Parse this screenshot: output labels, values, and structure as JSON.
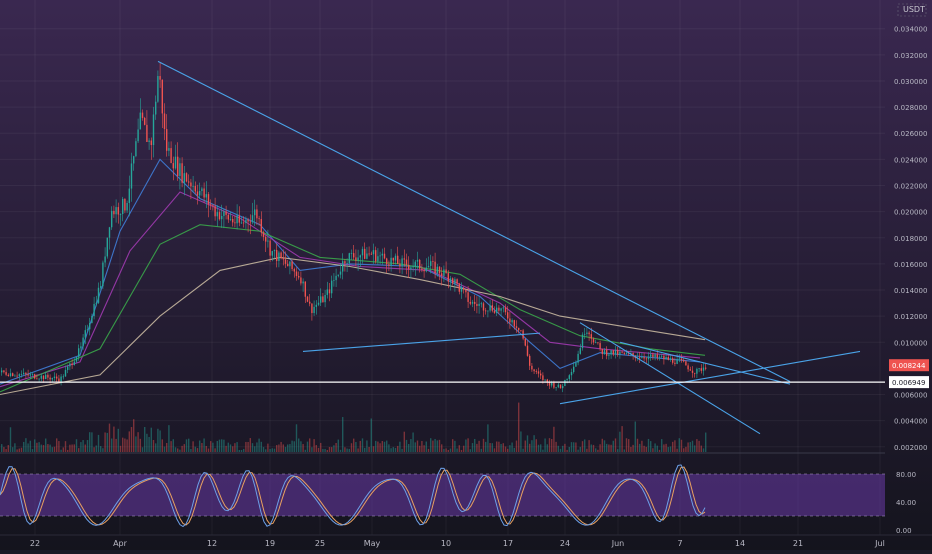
{
  "currency_label": "USDT",
  "colors": {
    "background_top": "#3a2850",
    "background_bottom": "#14141d",
    "candle_up": "#26a69a",
    "candle_down": "#ef5350",
    "ma_fast": "#3f7dd8",
    "ma_mid": "#a03ab0",
    "ma_slow": "#3aa64a",
    "ma_long": "#c8b8a0",
    "trendline": "#4aa3e8",
    "hline": "#ffffff",
    "stoch_k": "#6da0e8",
    "stoch_d": "#e8a060",
    "stoch_band": "#6a3aa8",
    "price_label_red": "#ef5350"
  },
  "chart_data": {
    "type": "candlestick",
    "y_axis": {
      "ticks": [
        "0.034000",
        "0.032000",
        "0.030000",
        "0.028000",
        "0.026000",
        "0.024000",
        "0.022000",
        "0.020000",
        "0.018000",
        "0.016000",
        "0.014000",
        "0.012000",
        "0.010000",
        "0.006000",
        "0.004000",
        "0.002000"
      ],
      "range": [
        0.0016,
        0.0362
      ]
    },
    "x_axis": {
      "ticks": [
        "22",
        "Apr",
        "12",
        "19",
        "25",
        "May",
        "10",
        "17",
        "24",
        "Jun",
        "7",
        "14",
        "21",
        "Jul"
      ]
    },
    "price_labels": {
      "last": "0.008244",
      "level": "0.006949"
    },
    "price_path": [
      [
        0,
        0.0077
      ],
      [
        60,
        0.0072
      ],
      [
        80,
        0.0095
      ],
      [
        100,
        0.0145
      ],
      [
        110,
        0.02
      ],
      [
        125,
        0.0205
      ],
      [
        140,
        0.027
      ],
      [
        150,
        0.025
      ],
      [
        158,
        0.031
      ],
      [
        165,
        0.025
      ],
      [
        180,
        0.023
      ],
      [
        200,
        0.0215
      ],
      [
        215,
        0.02
      ],
      [
        240,
        0.019
      ],
      [
        255,
        0.02
      ],
      [
        270,
        0.017
      ],
      [
        285,
        0.016
      ],
      [
        300,
        0.015
      ],
      [
        310,
        0.0125
      ],
      [
        325,
        0.0135
      ],
      [
        345,
        0.0165
      ],
      [
        370,
        0.0168
      ],
      [
        400,
        0.016
      ],
      [
        430,
        0.0158
      ],
      [
        450,
        0.015
      ],
      [
        470,
        0.013
      ],
      [
        500,
        0.0125
      ],
      [
        520,
        0.011
      ],
      [
        530,
        0.008
      ],
      [
        545,
        0.007
      ],
      [
        560,
        0.0065
      ],
      [
        575,
        0.0085
      ],
      [
        585,
        0.0112
      ],
      [
        600,
        0.0093
      ],
      [
        630,
        0.009
      ],
      [
        660,
        0.0088
      ],
      [
        680,
        0.0085
      ],
      [
        695,
        0.0077
      ],
      [
        705,
        0.0082
      ]
    ],
    "moving_averages": [
      {
        "points": [
          [
            0,
            0.0068
          ],
          [
            80,
            0.009
          ],
          [
            120,
            0.0185
          ],
          [
            160,
            0.024
          ],
          [
            200,
            0.021
          ],
          [
            260,
            0.019
          ],
          [
            300,
            0.0155
          ],
          [
            350,
            0.016
          ],
          [
            420,
            0.0158
          ],
          [
            480,
            0.0135
          ],
          [
            530,
            0.01
          ],
          [
            560,
            0.008
          ],
          [
            600,
            0.0092
          ],
          [
            700,
            0.0085
          ]
        ]
      },
      {
        "points": [
          [
            0,
            0.0066
          ],
          [
            80,
            0.0085
          ],
          [
            130,
            0.017
          ],
          [
            180,
            0.0215
          ],
          [
            240,
            0.0195
          ],
          [
            300,
            0.0165
          ],
          [
            360,
            0.0158
          ],
          [
            430,
            0.0155
          ],
          [
            500,
            0.013
          ],
          [
            550,
            0.01
          ],
          [
            600,
            0.0095
          ],
          [
            700,
            0.0088
          ]
        ]
      },
      {
        "points": [
          [
            0,
            0.0062
          ],
          [
            100,
            0.0095
          ],
          [
            160,
            0.0175
          ],
          [
            200,
            0.019
          ],
          [
            260,
            0.0185
          ],
          [
            320,
            0.0165
          ],
          [
            400,
            0.016
          ],
          [
            460,
            0.0152
          ],
          [
            520,
            0.0125
          ],
          [
            580,
            0.0105
          ],
          [
            650,
            0.0095
          ],
          [
            705,
            0.009
          ]
        ]
      },
      {
        "points": [
          [
            0,
            0.006
          ],
          [
            100,
            0.0075
          ],
          [
            160,
            0.012
          ],
          [
            220,
            0.0155
          ],
          [
            280,
            0.0165
          ],
          [
            350,
            0.0158
          ],
          [
            420,
            0.0148
          ],
          [
            500,
            0.0135
          ],
          [
            560,
            0.012
          ],
          [
            640,
            0.011
          ],
          [
            705,
            0.0102
          ]
        ]
      }
    ],
    "trendlines": [
      {
        "from": [
          158,
          0.0315
        ],
        "to": [
          790,
          0.007
        ]
      },
      {
        "from": [
          303,
          0.0093
        ],
        "to": [
          540,
          0.0107
        ]
      },
      {
        "from": [
          560,
          0.0053
        ],
        "to": [
          860,
          0.0093
        ]
      },
      {
        "from": [
          580,
          0.0115
        ],
        "to": [
          760,
          0.003
        ]
      },
      {
        "from": [
          620,
          0.01
        ],
        "to": [
          790,
          0.0068
        ]
      }
    ],
    "horizontal_level": 0.006949,
    "stochastic": {
      "ticks": [
        "80.00",
        "40.00",
        "0.00"
      ],
      "band": [
        20,
        80
      ]
    }
  }
}
